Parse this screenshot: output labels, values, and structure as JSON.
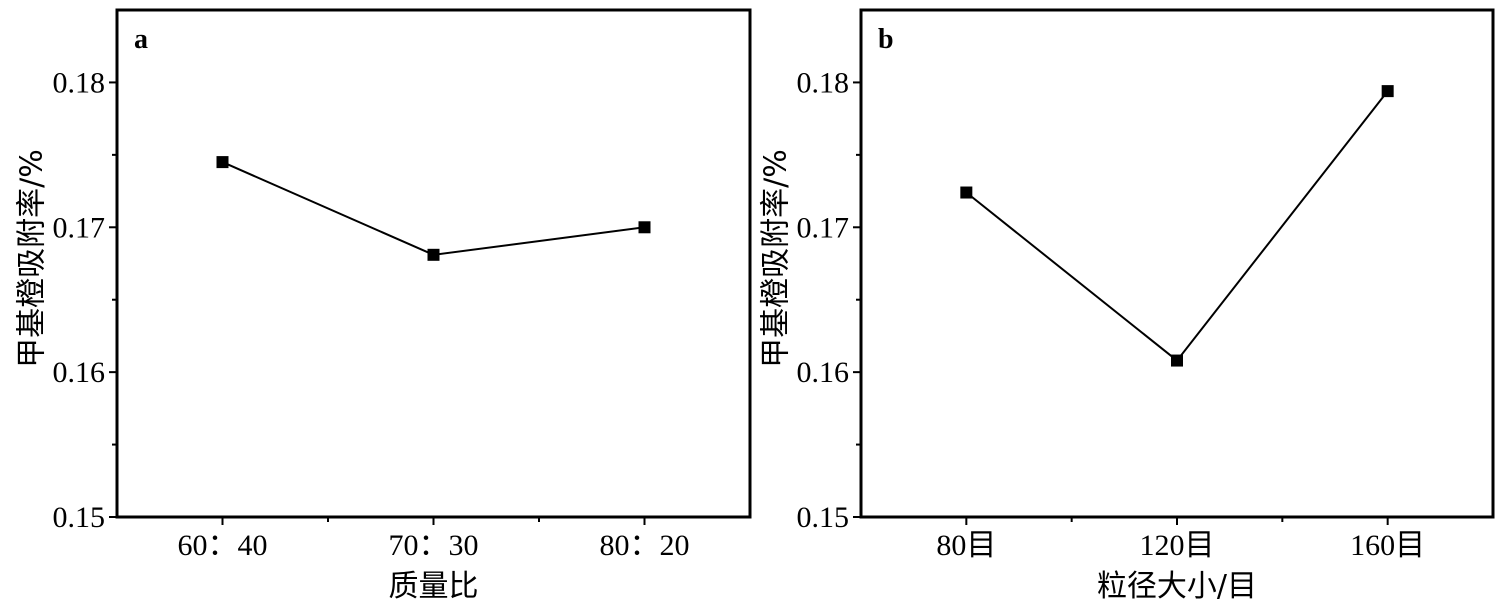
{
  "chart_data": [
    {
      "type": "line",
      "panel_label": "a",
      "categories": [
        "60：40",
        "70：30",
        "80：20"
      ],
      "series": [
        {
          "values": [
            0.1745,
            0.1681,
            0.17
          ],
          "color": "#000000",
          "marker": "square"
        }
      ],
      "xlabel": "质量比",
      "ylabel": "甲基橙吸附率/%",
      "ylim": [
        0.15,
        0.185
      ],
      "yticks": [
        "0.15",
        "0.16",
        "0.17",
        "0.18"
      ],
      "grid": false,
      "legend": "none"
    },
    {
      "type": "line",
      "panel_label": "b",
      "categories": [
        "80目",
        "120目",
        "160目"
      ],
      "series": [
        {
          "values": [
            0.1724,
            0.1608,
            0.1794
          ],
          "color": "#000000",
          "marker": "square"
        }
      ],
      "xlabel": "粒径大小/目",
      "ylabel": "甲基橙吸附率/%",
      "ylim": [
        0.15,
        0.185
      ],
      "yticks": [
        "0.15",
        "0.16",
        "0.17",
        "0.18"
      ],
      "grid": false,
      "legend": "none"
    }
  ]
}
